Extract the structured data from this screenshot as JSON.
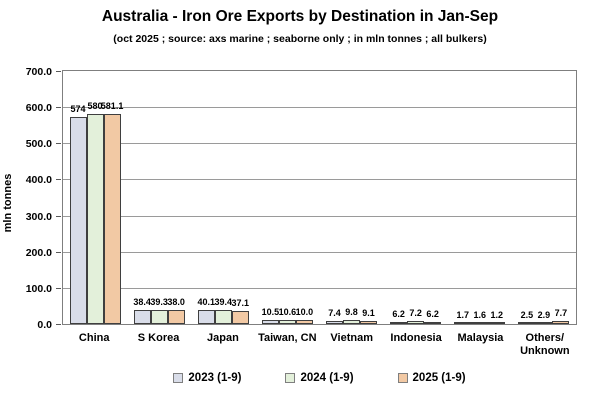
{
  "chart_data": {
    "type": "bar",
    "title": "Australia - Iron Ore Exports by Destination in Jan-Sep",
    "subtitle": "(oct 2025 ; source: axs marine ; seaborne only ; in mln tonnes ; all bulkers)",
    "ylabel": "mln tonnes",
    "ylim": [
      0,
      700
    ],
    "ytick_step": 100,
    "ytick_decimals": 1,
    "grid": true,
    "legend_position": "bottom",
    "bar_border_color": "#3f3f3f",
    "categories": [
      "China",
      "S Korea",
      "Japan",
      "Taiwan, CN",
      "Vietnam",
      "Indonesia",
      "Malaysia",
      "Others/\nUnknown"
    ],
    "series": [
      {
        "name": "2023 (1-9)",
        "color": "#d9dde9",
        "values": [
          574,
          38.4,
          40.1,
          10.5,
          7.4,
          6.2,
          1.7,
          2.5
        ],
        "labels": [
          "574",
          "38.4",
          "40.1",
          "10.5",
          "7.4",
          "6.2",
          "1.7",
          "2.5"
        ]
      },
      {
        "name": "2024 (1-9)",
        "color": "#e3f0da",
        "values": [
          580,
          39.3,
          39.4,
          10.6,
          9.8,
          7.2,
          1.6,
          2.9
        ],
        "labels": [
          "580",
          "39.3",
          "39.4",
          "10.6",
          "9.8",
          "7.2",
          "1.6",
          "2.9"
        ]
      },
      {
        "name": "2025 (1-9)",
        "color": "#f2c9a4",
        "values": [
          581.1,
          38.0,
          37.1,
          10.0,
          9.1,
          6.2,
          1.2,
          7.7
        ],
        "labels": [
          "581.1",
          "38.0",
          "37.1",
          "10.0",
          "9.1",
          "6.2",
          "1.2",
          "7.7"
        ]
      }
    ]
  }
}
